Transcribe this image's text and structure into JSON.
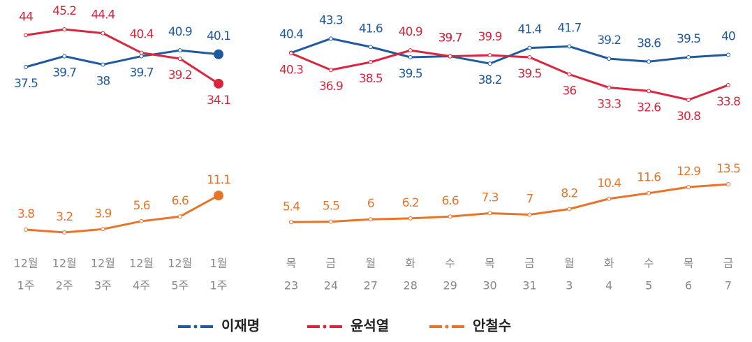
{
  "chart_data": [
    {
      "type": "line",
      "categories": [
        [
          "12월",
          "1주"
        ],
        [
          "12월",
          "2주"
        ],
        [
          "12월",
          "3주"
        ],
        [
          "12월",
          "4주"
        ],
        [
          "12월",
          "5주"
        ],
        [
          "1월",
          "1주"
        ]
      ],
      "series": [
        {
          "name": "이재명",
          "color": "#1f5aa0",
          "values": [
            37.5,
            39.7,
            38.0,
            39.7,
            40.9,
            40.1
          ]
        },
        {
          "name": "윤석열",
          "color": "#d7263d",
          "values": [
            44.0,
            45.2,
            44.4,
            40.4,
            39.2,
            34.1
          ]
        },
        {
          "name": "안철수",
          "color": "#e8742a",
          "values": [
            3.8,
            3.2,
            3.9,
            5.6,
            6.6,
            11.1
          ]
        }
      ]
    },
    {
      "type": "line",
      "categories": [
        [
          "목",
          "23"
        ],
        [
          "금",
          "24"
        ],
        [
          "월",
          "27"
        ],
        [
          "화",
          "28"
        ],
        [
          "수",
          "29"
        ],
        [
          "목",
          "30"
        ],
        [
          "금",
          "31"
        ],
        [
          "월",
          "3"
        ],
        [
          "화",
          "4"
        ],
        [
          "수",
          "5"
        ],
        [
          "목",
          "6"
        ],
        [
          "금",
          "7"
        ]
      ],
      "series": [
        {
          "color": "#1f5aa0",
          "values": [
            40.4,
            43.3,
            41.6,
            39.5,
            39.7,
            38.2,
            41.4,
            41.7,
            39.2,
            38.6,
            39.5,
            40.0
          ]
        },
        {
          "color": "#d7263d",
          "values": [
            40.3,
            36.9,
            38.5,
            40.9,
            39.7,
            39.9,
            39.5,
            36.0,
            33.3,
            32.6,
            30.8,
            33.8
          ]
        },
        {
          "color": "#e8742a",
          "values": [
            5.4,
            5.5,
            6.0,
            6.2,
            6.6,
            7.3,
            7.0,
            8.2,
            10.4,
            11.6,
            12.9,
            13.5
          ]
        }
      ]
    }
  ]
}
